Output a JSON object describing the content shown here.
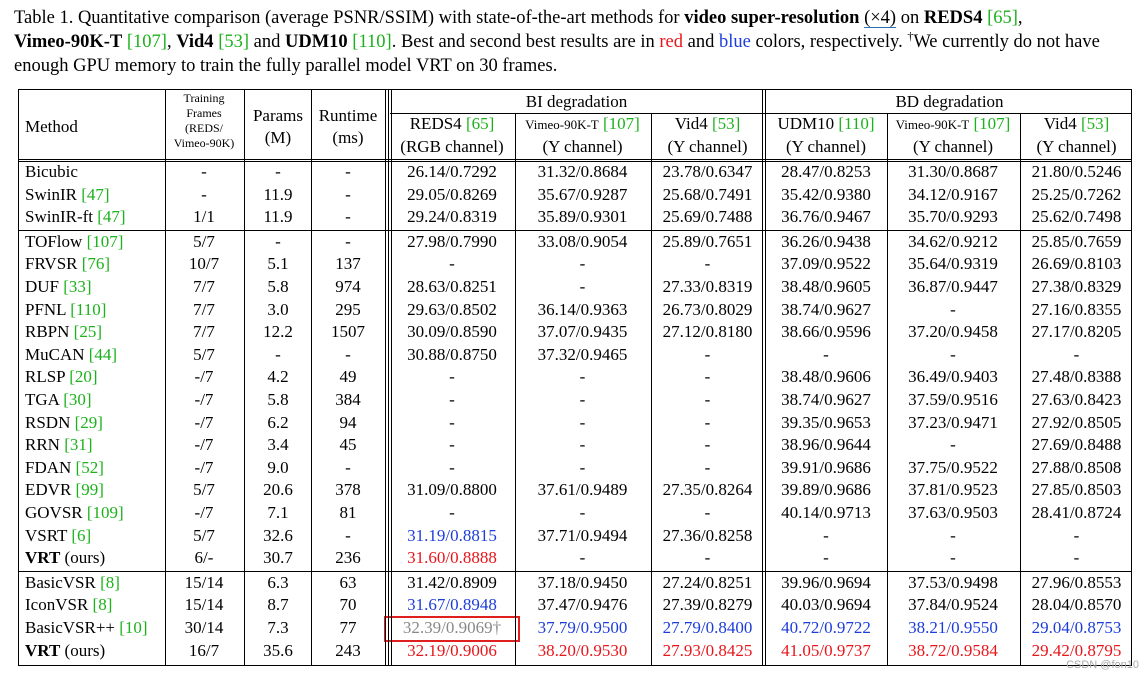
{
  "caption": {
    "p1": "Table 1. Quantitative comparison (average PSNR/SSIM) with state-of-the-art methods for ",
    "b1": "video super-resolution",
    "p2": " ",
    "u1": "(×4)",
    "p3": " on ",
    "b2": "REDS4",
    "p4": " ",
    "r1": "[65]",
    "p5": ",",
    "b3": "Vimeo-90K-T",
    "p6": " ",
    "r2": "[107]",
    "p7": ", ",
    "b4": "Vid4",
    "p8": " ",
    "r3": "[53]",
    "p9": " and ",
    "b5": "UDM10",
    "p10": " ",
    "r4": "[110]",
    "p11": ". Best and second best results are in ",
    "red_word": "red",
    "p12": " and ",
    "blue_word": "blue",
    "p13": " colors, respectively. ",
    "dagger": "†",
    "p14": "We currently do not have enough GPU memory to train the fully parallel model VRT on 30 frames."
  },
  "header": {
    "method": "Method",
    "training_l1": "Training",
    "training_l2": "Frames",
    "training_l3": "(REDS/",
    "training_l4": "Vimeo-90K)",
    "params_l1": "Params",
    "params_l2": "(M)",
    "runtime_l1": "Runtime",
    "runtime_l2": "(ms)",
    "bi": "BI degradation",
    "bd": "BD degradation",
    "cols": [
      {
        "name": "REDS4",
        "ref": "[65]",
        "sub": "(RGB channel)",
        "small": false
      },
      {
        "name": "Vimeo-90K-T",
        "ref": "[107]",
        "sub": "(Y channel)",
        "small": true
      },
      {
        "name": "Vid4",
        "ref": "[53]",
        "sub": "(Y channel)",
        "small": false
      },
      {
        "name": "UDM10",
        "ref": "[110]",
        "sub": "(Y channel)",
        "small": false
      },
      {
        "name": "Vimeo-90K-T",
        "ref": "[107]",
        "sub": "(Y channel)",
        "small": true
      },
      {
        "name": "Vid4",
        "ref": "[53]",
        "sub": "(Y channel)",
        "small": false
      }
    ]
  },
  "rows": [
    {
      "m": "Bicubic",
      "ref": "",
      "bold": false,
      "tf": "-",
      "p": "-",
      "rt": "-",
      "v": [
        "26.14/0.7292",
        "31.32/0.8684",
        "23.78/0.6347",
        "28.47/0.8253",
        "31.30/0.8687",
        "21.80/0.5246"
      ]
    },
    {
      "m": "SwinIR",
      "ref": "[47]",
      "bold": false,
      "tf": "-",
      "p": "11.9",
      "rt": "-",
      "v": [
        "29.05/0.8269",
        "35.67/0.9287",
        "25.68/0.7491",
        "35.42/0.9380",
        "34.12/0.9167",
        "25.25/0.7262"
      ]
    },
    {
      "m": "SwinIR-ft",
      "ref": "[47]",
      "bold": false,
      "tf": "1/1",
      "p": "11.9",
      "rt": "-",
      "v": [
        "29.24/0.8319",
        "35.89/0.9301",
        "25.69/0.7488",
        "36.76/0.9467",
        "35.70/0.9293",
        "25.62/0.7498"
      ]
    },
    {
      "m": "TOFlow",
      "ref": "[107]",
      "bold": false,
      "tf": "5/7",
      "p": "-",
      "rt": "-",
      "v": [
        "27.98/0.7990",
        "33.08/0.9054",
        "25.89/0.7651",
        "36.26/0.9438",
        "34.62/0.9212",
        "25.85/0.7659"
      ]
    },
    {
      "m": "FRVSR",
      "ref": "[76]",
      "bold": false,
      "tf": "10/7",
      "p": "5.1",
      "rt": "137",
      "v": [
        "-",
        "-",
        "-",
        "37.09/0.9522",
        "35.64/0.9319",
        "26.69/0.8103"
      ]
    },
    {
      "m": "DUF",
      "ref": "[33]",
      "bold": false,
      "tf": "7/7",
      "p": "5.8",
      "rt": "974",
      "v": [
        "28.63/0.8251",
        "-",
        "27.33/0.8319",
        "38.48/0.9605",
        "36.87/0.9447",
        "27.38/0.8329"
      ]
    },
    {
      "m": "PFNL",
      "ref": "[110]",
      "bold": false,
      "tf": "7/7",
      "p": "3.0",
      "rt": "295",
      "v": [
        "29.63/0.8502",
        "36.14/0.9363",
        "26.73/0.8029",
        "38.74/0.9627",
        "-",
        "27.16/0.8355"
      ]
    },
    {
      "m": "RBPN",
      "ref": "[25]",
      "bold": false,
      "tf": "7/7",
      "p": "12.2",
      "rt": "1507",
      "v": [
        "30.09/0.8590",
        "37.07/0.9435",
        "27.12/0.8180",
        "38.66/0.9596",
        "37.20/0.9458",
        "27.17/0.8205"
      ]
    },
    {
      "m": "MuCAN",
      "ref": "[44]",
      "bold": false,
      "tf": "5/7",
      "p": "-",
      "rt": "-",
      "v": [
        "30.88/0.8750",
        "37.32/0.9465",
        "-",
        "-",
        "-",
        "-"
      ]
    },
    {
      "m": "RLSP",
      "ref": "[20]",
      "bold": false,
      "tf": "-/7",
      "p": "4.2",
      "rt": "49",
      "v": [
        "-",
        "-",
        "-",
        "38.48/0.9606",
        "36.49/0.9403",
        "27.48/0.8388"
      ]
    },
    {
      "m": "TGA",
      "ref": "[30]",
      "bold": false,
      "tf": "-/7",
      "p": "5.8",
      "rt": "384",
      "v": [
        "-",
        "-",
        "-",
        "38.74/0.9627",
        "37.59/0.9516",
        "27.63/0.8423"
      ]
    },
    {
      "m": "RSDN",
      "ref": "[29]",
      "bold": false,
      "tf": "-/7",
      "p": "6.2",
      "rt": "94",
      "v": [
        "-",
        "-",
        "-",
        "39.35/0.9653",
        "37.23/0.9471",
        "27.92/0.8505"
      ]
    },
    {
      "m": "RRN",
      "ref": "[31]",
      "bold": false,
      "tf": "-/7",
      "p": "3.4",
      "rt": "45",
      "v": [
        "-",
        "-",
        "-",
        "38.96/0.9644",
        "-",
        "27.69/0.8488"
      ]
    },
    {
      "m": "FDAN",
      "ref": "[52]",
      "bold": false,
      "tf": "-/7",
      "p": "9.0",
      "rt": "-",
      "v": [
        "-",
        "-",
        "-",
        "39.91/0.9686",
        "37.75/0.9522",
        "27.88/0.8508"
      ]
    },
    {
      "m": "EDVR",
      "ref": "[99]",
      "bold": false,
      "tf": "5/7",
      "p": "20.6",
      "rt": "378",
      "v": [
        "31.09/0.8800",
        "37.61/0.9489",
        "27.35/0.8264",
        "39.89/0.9686",
        "37.81/0.9523",
        "27.85/0.8503"
      ]
    },
    {
      "m": "GOVSR",
      "ref": "[109]",
      "bold": false,
      "tf": "-/7",
      "p": "7.1",
      "rt": "81",
      "v": [
        "-",
        "-",
        "-",
        "40.14/0.9713",
        "37.63/0.9503",
        "28.41/0.8724"
      ]
    },
    {
      "m": "VSRT",
      "ref": "[6]",
      "bold": false,
      "tf": "5/7",
      "p": "32.6",
      "rt": "-",
      "v": [
        "31.19/0.8815",
        "37.71/0.9494",
        "27.36/0.8258",
        "-",
        "-",
        "-"
      ],
      "c": [
        "blue",
        "",
        "",
        "",
        "",
        ""
      ]
    },
    {
      "m": "VRT",
      "ref": "",
      "suffix": " (ours)",
      "bold": true,
      "tf": "6/-",
      "p": "30.7",
      "rt": "236",
      "v": [
        "31.60/0.8888",
        "-",
        "-",
        "-",
        "-",
        "-"
      ],
      "c": [
        "red",
        "",
        "",
        "",
        "",
        ""
      ]
    },
    {
      "m": "BasicVSR",
      "ref": "[8]",
      "bold": false,
      "tf": "15/14",
      "p": "6.3",
      "rt": "63",
      "v": [
        "31.42/0.8909",
        "37.18/0.9450",
        "27.24/0.8251",
        "39.96/0.9694",
        "37.53/0.9498",
        "27.96/0.8553"
      ]
    },
    {
      "m": "IconVSR",
      "ref": "[8]",
      "bold": false,
      "tf": "15/14",
      "p": "8.7",
      "rt": "70",
      "v": [
        "31.67/0.8948",
        "37.47/0.9476",
        "27.39/0.8279",
        "40.03/0.9694",
        "37.84/0.9524",
        "28.04/0.8570"
      ],
      "c": [
        "blue",
        "",
        "",
        "",
        "",
        ""
      ]
    },
    {
      "m": "BasicVSR++",
      "ref": "[10]",
      "bold": false,
      "tf": "30/14",
      "p": "7.3",
      "rt": "77",
      "v": [
        "32.39/0.9069†",
        "37.79/0.9500",
        "27.79/0.8400",
        "40.72/0.9722",
        "38.21/0.9550",
        "29.04/0.8753"
      ],
      "c": [
        "gray",
        "blue",
        "blue",
        "blue",
        "blue",
        "blue"
      ]
    },
    {
      "m": "VRT",
      "ref": "",
      "suffix": " (ours)",
      "bold": true,
      "tf": "16/7",
      "p": "35.6",
      "rt": "243",
      "v": [
        "32.19/0.9006",
        "38.20/0.9530",
        "27.93/0.8425",
        "41.05/0.9737",
        "38.72/0.9584",
        "29.42/0.8795"
      ],
      "c": [
        "red",
        "red",
        "red",
        "red",
        "red",
        "red"
      ]
    }
  ],
  "watermark": "CSDN @fon10"
}
